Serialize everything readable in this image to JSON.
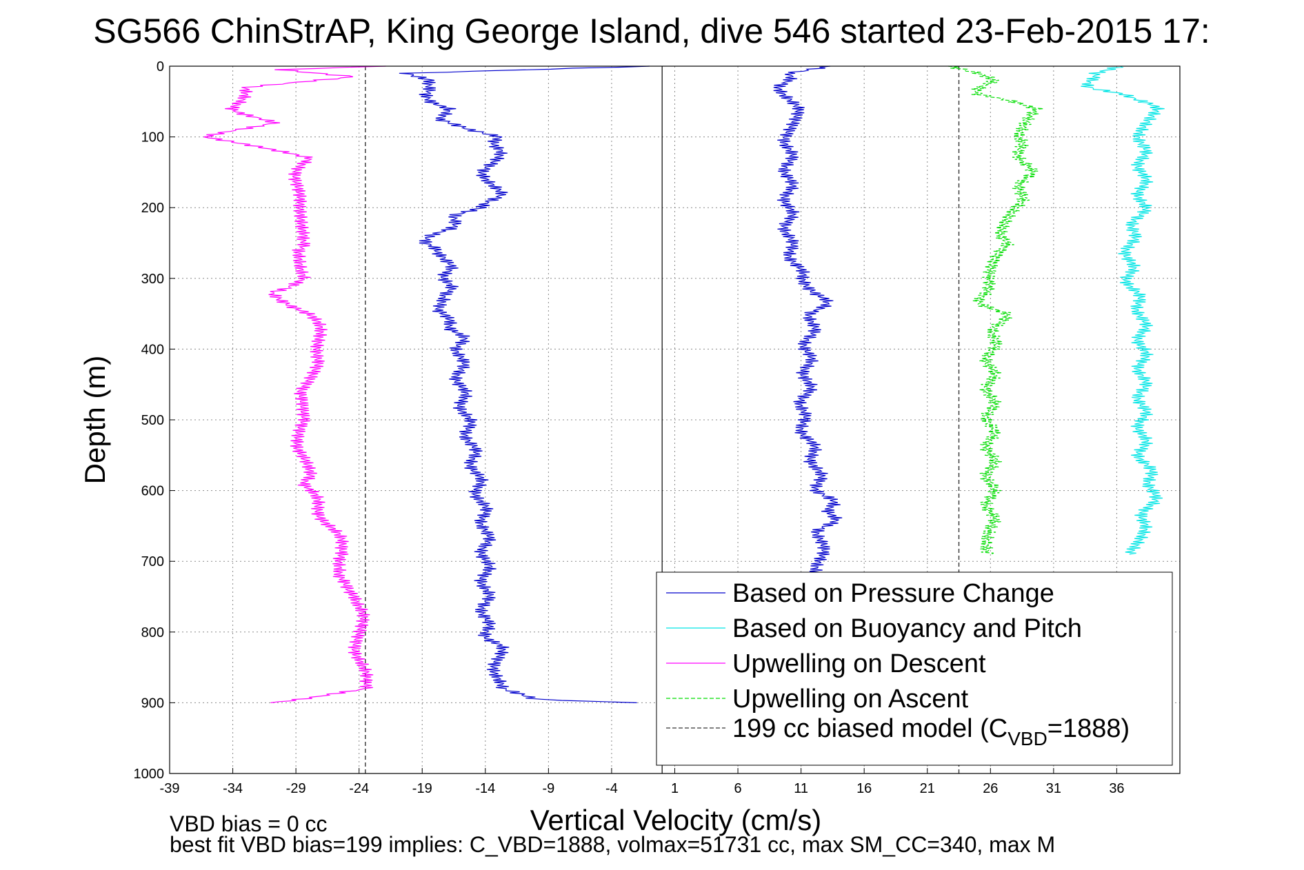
{
  "chart_data": {
    "type": "line",
    "title": "SG566 ChinStrAP, King George Island, dive 546 started 23-Feb-2015 17:",
    "xlabel": "Vertical Velocity (cm/s)",
    "ylabel": "Depth (m)",
    "xlim": [
      -39,
      41
    ],
    "ylim": [
      0,
      1000
    ],
    "y_reversed": true,
    "grid": true,
    "x_ticks": [
      -39,
      -34,
      -29,
      -24,
      -19,
      -14,
      -9,
      -4,
      1,
      6,
      11,
      16,
      21,
      26,
      31,
      36
    ],
    "y_ticks": [
      0,
      100,
      200,
      300,
      400,
      500,
      600,
      700,
      800,
      900,
      1000
    ],
    "reference_lines": {
      "zero_x": 0,
      "biased_model_x": [
        -23.5,
        23.5
      ]
    },
    "legend_position": "bottom-right",
    "series": [
      {
        "name": "Based on Pressure Change",
        "color": "#0000cc",
        "style": "solid",
        "depth": [
          0,
          10,
          20,
          40,
          60,
          75,
          90,
          100,
          120,
          150,
          180,
          200,
          210,
          230,
          250,
          270,
          290,
          310,
          330,
          345,
          360,
          380,
          400,
          450,
          500,
          550,
          600,
          650,
          700,
          750,
          800,
          820,
          850,
          880,
          895,
          900
        ],
        "values": [
          -1,
          -20,
          -18,
          -19,
          -17,
          -18,
          -15,
          -13,
          -13,
          -14,
          -13,
          -14,
          -16,
          -17,
          -19,
          -17,
          -17,
          -17,
          -17,
          -18,
          -17,
          -16,
          -16,
          -16,
          -15.5,
          -15,
          -14.5,
          -14,
          -14,
          -14,
          -14,
          -13,
          -13,
          -13,
          -10,
          -2
        ]
      },
      {
        "name": "Based on Pressure Change",
        "color": "#0000cc",
        "style": "solid",
        "depth": [
          0,
          10,
          30,
          60,
          100,
          150,
          200,
          250,
          300,
          330,
          350,
          400,
          450,
          500,
          550,
          600,
          620,
          640,
          660,
          690,
          720
        ],
        "values": [
          13,
          10,
          9.5,
          10.5,
          10,
          10,
          10,
          10,
          11,
          13,
          12,
          11.5,
          11.5,
          11,
          12,
          12.5,
          13.5,
          13.5,
          12.5,
          12.5,
          12.5
        ]
      },
      {
        "name": "Based on Buoyancy and Pitch",
        "color": "#00e5e5",
        "style": "solid",
        "depth": [
          0,
          10,
          30,
          40,
          60,
          100,
          150,
          200,
          250,
          300,
          350,
          400,
          450,
          500,
          550,
          600,
          650,
          690
        ],
        "values": [
          36,
          34,
          34,
          37,
          39,
          38,
          38,
          38,
          37,
          37,
          38,
          38,
          38,
          38,
          38,
          39,
          38,
          37
        ]
      },
      {
        "name": "Upwelling on Descent",
        "color": "#ff00ff",
        "style": "solid",
        "depth": [
          0,
          5,
          15,
          30,
          60,
          80,
          100,
          130,
          160,
          200,
          240,
          260,
          300,
          320,
          350,
          380,
          420,
          460,
          500,
          540,
          580,
          600,
          630,
          660,
          690,
          720,
          750,
          780,
          820,
          850,
          880,
          900
        ],
        "values": [
          -22,
          -30,
          -24,
          -33,
          -34,
          -31,
          -36,
          -28,
          -29,
          -29,
          -28,
          -29,
          -28,
          -31,
          -28,
          -27,
          -27,
          -29,
          -28,
          -29,
          -28,
          -28,
          -27,
          -26,
          -25,
          -26,
          -24,
          -24,
          -24,
          -24,
          -23,
          -31
        ]
      },
      {
        "name": "Upwelling on Ascent",
        "color": "#00dd00",
        "style": "dashed",
        "depth": [
          0,
          10,
          20,
          40,
          60,
          100,
          150,
          200,
          240,
          260,
          300,
          330,
          350,
          400,
          450,
          500,
          550,
          600,
          650,
          690
        ],
        "values": [
          23,
          25,
          26,
          25,
          30,
          28,
          29,
          28,
          27,
          27,
          26,
          25,
          27,
          26,
          26,
          26,
          26,
          26,
          26,
          26
        ]
      }
    ],
    "legend": [
      {
        "label": "Based on Pressure Change",
        "color": "#0000cc",
        "style": "solid"
      },
      {
        "label": "Based on Buoyancy and Pitch",
        "color": "#00e5e5",
        "style": "solid"
      },
      {
        "label": "Upwelling on Descent",
        "color": "#ff00ff",
        "style": "solid"
      },
      {
        "label": "Upwelling on Ascent",
        "color": "#00dd00",
        "style": "dashed"
      },
      {
        "label": "199 cc biased model (C",
        "sub": "VBD",
        "suffix": "=1888)",
        "color": "#333333",
        "style": "dashed"
      }
    ],
    "annotations": {
      "vbd_bias": "VBD bias = 0 cc",
      "best_fit": "best fit VBD bias=199 implies: C_VBD=1888, volmax=51731 cc, max SM_CC=340, max M"
    }
  }
}
